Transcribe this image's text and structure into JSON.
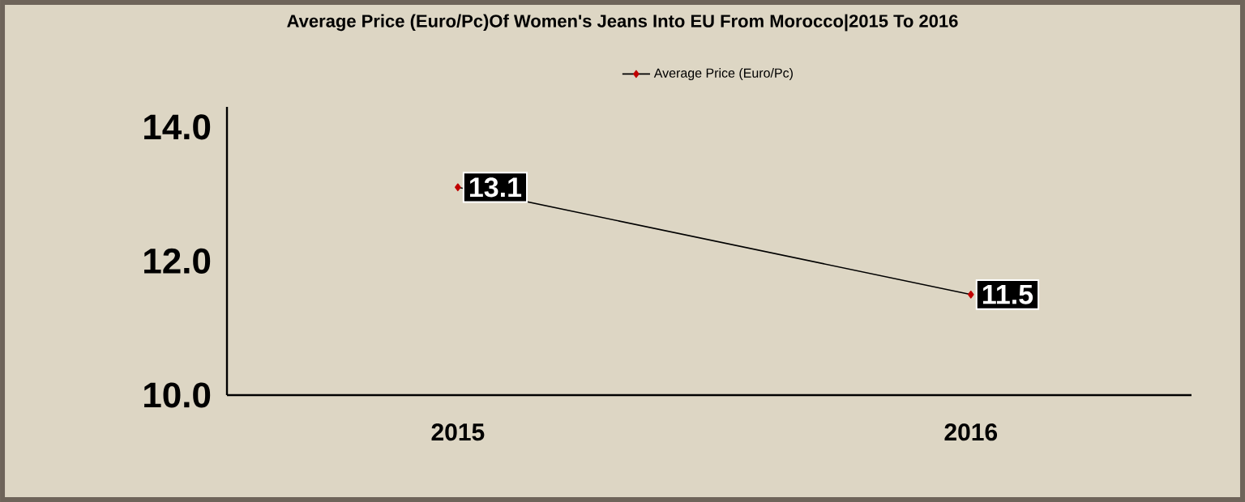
{
  "chart_data": {
    "type": "line",
    "title": "Average Price (Euro/Pc)Of Women's Jeans Into EU From Morocco|2015 To 2016",
    "categories": [
      "2015",
      "2016"
    ],
    "series": [
      {
        "name": "Average Price (Euro/Pc)",
        "color": "#c00000",
        "values": [
          13.1,
          11.5
        ],
        "value_labels": [
          "13.1",
          "11.5"
        ]
      }
    ],
    "ylim": [
      10,
      14.3
    ],
    "yticks": [
      {
        "value": 10,
        "label": "10.0"
      },
      {
        "value": 12,
        "label": "12.0"
      },
      {
        "value": 14,
        "label": "14.0"
      }
    ],
    "legend": "top",
    "marker": "diamond",
    "grid": false
  }
}
